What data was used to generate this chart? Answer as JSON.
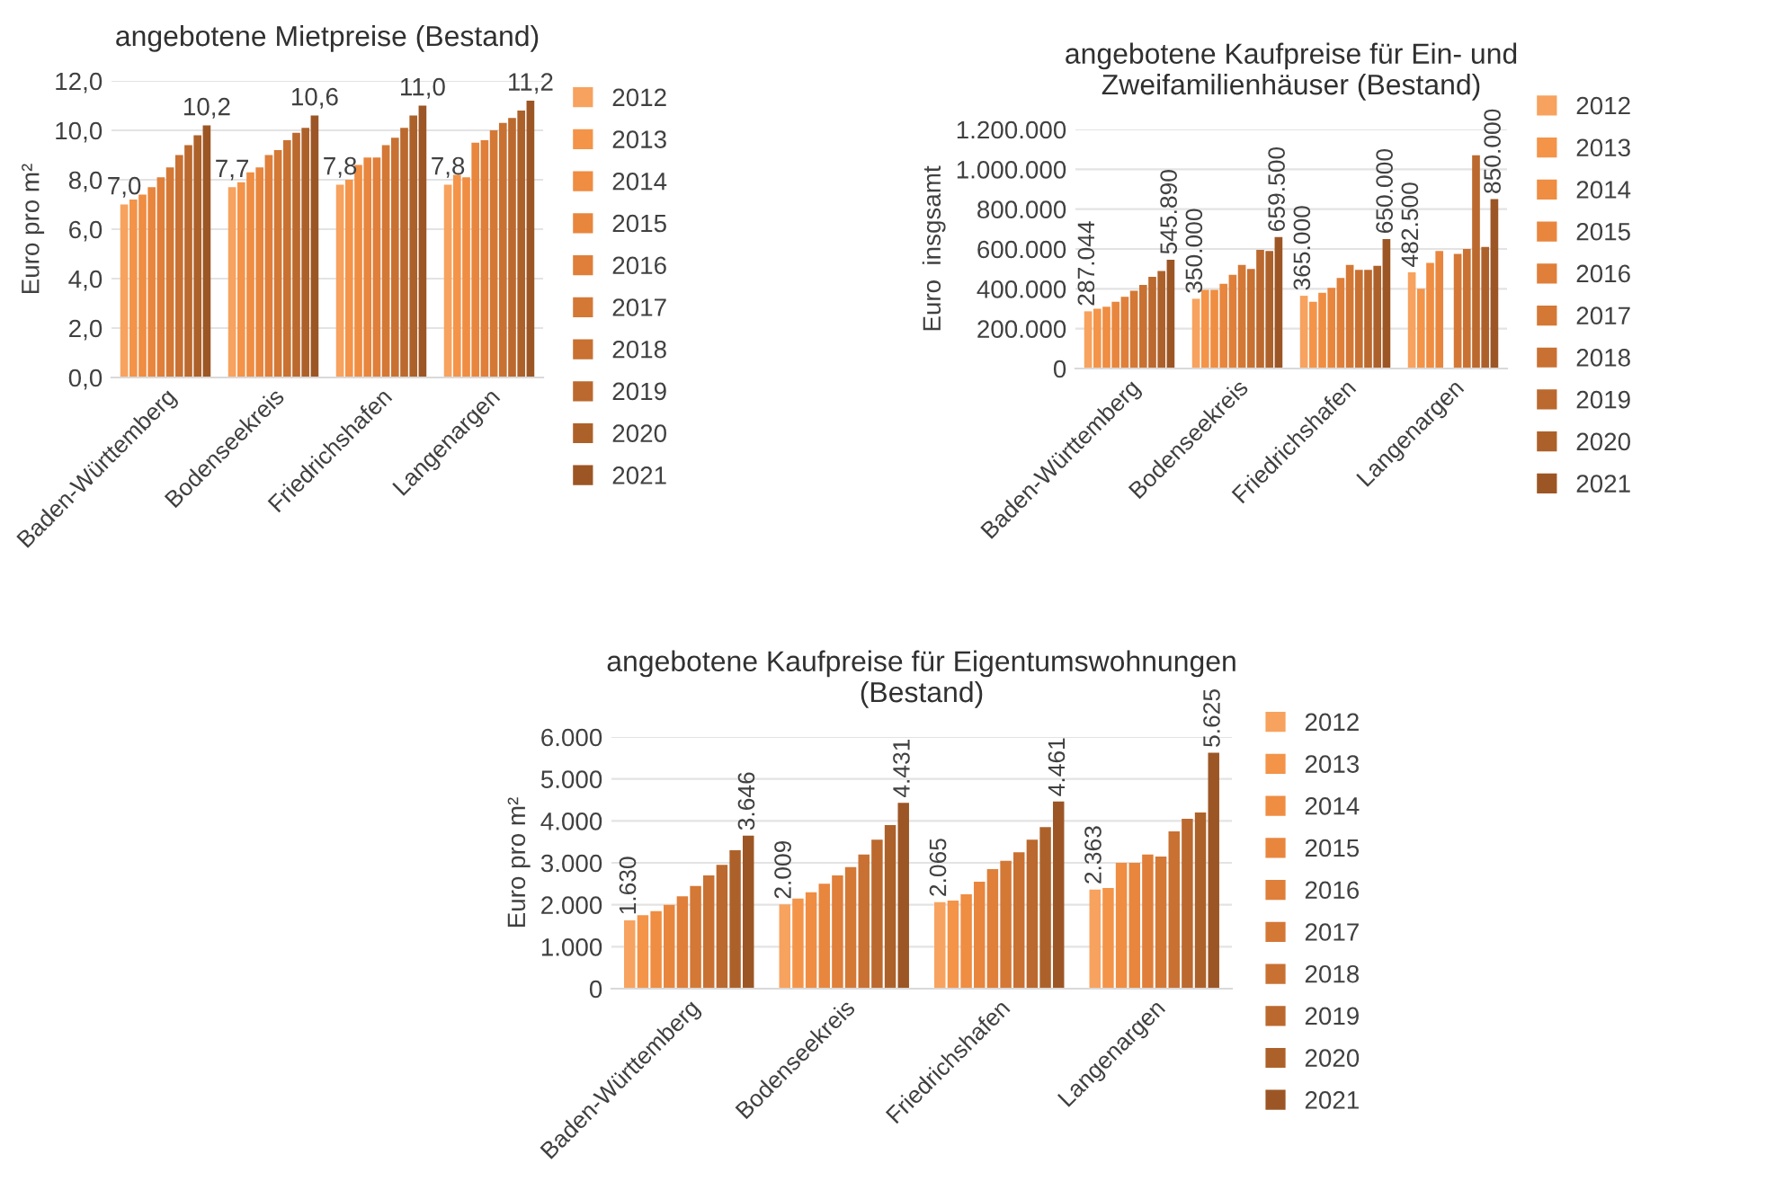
{
  "chart_data": [
    {
      "type": "bar",
      "title": "angebotene Mietpreise (Bestand)",
      "ylabel": "Euro pro m²",
      "categories": [
        "Baden-Württemberg",
        "Bodenseekreis",
        "Friedrichshafen",
        "Langenargen"
      ],
      "ylim": [
        0,
        12
      ],
      "yticks": [
        {
          "value": 0,
          "label": "0,0"
        },
        {
          "value": 2,
          "label": "2,0"
        },
        {
          "value": 4,
          "label": "4,0"
        },
        {
          "value": 6,
          "label": "6,0"
        },
        {
          "value": 8,
          "label": "8,0"
        },
        {
          "value": 10,
          "label": "10,0"
        },
        {
          "value": 12,
          "label": "12,0"
        }
      ],
      "grid": "y",
      "legend": "right",
      "series": [
        {
          "name": "2012",
          "color": "#f7a25e",
          "values": [
            7.0,
            7.7,
            7.8,
            7.8
          ],
          "value_labels": [
            "7,0",
            "7,7",
            "7,8",
            "7,8"
          ]
        },
        {
          "name": "2013",
          "color": "#f39449",
          "values": [
            7.2,
            7.9,
            8.0,
            8.2
          ]
        },
        {
          "name": "2014",
          "color": "#ef8d42",
          "values": [
            7.4,
            8.3,
            8.6,
            8.1
          ]
        },
        {
          "name": "2015",
          "color": "#e8863e",
          "values": [
            7.7,
            8.5,
            8.9,
            9.5
          ]
        },
        {
          "name": "2016",
          "color": "#df7f3a",
          "values": [
            8.1,
            9.0,
            8.9,
            9.6
          ]
        },
        {
          "name": "2017",
          "color": "#d47836",
          "values": [
            8.5,
            9.2,
            9.4,
            10.0
          ]
        },
        {
          "name": "2018",
          "color": "#c97132",
          "values": [
            9.0,
            9.6,
            9.7,
            10.3
          ]
        },
        {
          "name": "2019",
          "color": "#bb692e",
          "values": [
            9.4,
            9.9,
            10.1,
            10.5
          ]
        },
        {
          "name": "2020",
          "color": "#ad612a",
          "values": [
            9.8,
            10.1,
            10.6,
            10.8
          ]
        },
        {
          "name": "2021",
          "color": "#9c5625",
          "values": [
            10.2,
            10.6,
            11.0,
            11.2
          ],
          "value_labels": [
            "10,2",
            "10,6",
            "11,0",
            "11,2"
          ]
        }
      ]
    },
    {
      "type": "bar",
      "title": "angebotene Kaufpreise für Ein- und\nZweifamilienhäuser (Bestand)",
      "ylabel": "Euro  insgsamt",
      "categories": [
        "Baden-Württemberg",
        "Bodenseekreis",
        "Friedrichshafen",
        "Langenargen"
      ],
      "ylim": [
        0,
        1200000
      ],
      "yticks": [
        {
          "value": 0,
          "label": "0"
        },
        {
          "value": 200000,
          "label": "200.000"
        },
        {
          "value": 400000,
          "label": "400.000"
        },
        {
          "value": 600000,
          "label": "600.000"
        },
        {
          "value": 800000,
          "label": "800.000"
        },
        {
          "value": 1000000,
          "label": "1.000.000"
        },
        {
          "value": 1200000,
          "label": "1.200.000"
        }
      ],
      "grid": "y",
      "legend": "right",
      "series": [
        {
          "name": "2012",
          "color": "#f7a25e",
          "values": [
            287044,
            350000,
            365000,
            482500
          ],
          "value_labels": [
            "287.044",
            "350.000",
            "365.000",
            "482.500"
          ]
        },
        {
          "name": "2013",
          "color": "#f39449",
          "values": [
            300000,
            395000,
            335000,
            400000
          ]
        },
        {
          "name": "2014",
          "color": "#ef8d42",
          "values": [
            310000,
            395000,
            380000,
            530000
          ]
        },
        {
          "name": "2015",
          "color": "#e8863e",
          "values": [
            335000,
            425000,
            405000,
            590000
          ]
        },
        {
          "name": "2016",
          "color": "#df7f3a",
          "values": [
            360000,
            470000,
            455000,
            null
          ]
        },
        {
          "name": "2017",
          "color": "#d47836",
          "values": [
            390000,
            520000,
            520000,
            575000
          ]
        },
        {
          "name": "2018",
          "color": "#c97132",
          "values": [
            420000,
            500000,
            495000,
            600000
          ]
        },
        {
          "name": "2019",
          "color": "#bb692e",
          "values": [
            460000,
            595000,
            495000,
            1070000
          ]
        },
        {
          "name": "2020",
          "color": "#ad612a",
          "values": [
            490000,
            590000,
            515000,
            610000
          ]
        },
        {
          "name": "2021",
          "color": "#9c5625",
          "values": [
            545890,
            659500,
            650000,
            850000
          ],
          "value_labels": [
            "545.890",
            "659.500",
            "650.000",
            "850.000"
          ]
        }
      ]
    },
    {
      "type": "bar",
      "title": "angebotene Kaufpreise für Eigentumswohnungen\n(Bestand)",
      "ylabel": "Euro pro m²",
      "categories": [
        "Baden-Württemberg",
        "Bodenseekreis",
        "Friedrichshafen",
        "Langenargen"
      ],
      "ylim": [
        0,
        6000
      ],
      "yticks": [
        {
          "value": 0,
          "label": "0"
        },
        {
          "value": 1000,
          "label": "1.000"
        },
        {
          "value": 2000,
          "label": "2.000"
        },
        {
          "value": 3000,
          "label": "3.000"
        },
        {
          "value": 4000,
          "label": "4.000"
        },
        {
          "value": 5000,
          "label": "5.000"
        },
        {
          "value": 6000,
          "label": "6.000"
        }
      ],
      "grid": "y",
      "legend": "right",
      "series": [
        {
          "name": "2012",
          "color": "#f7a25e",
          "values": [
            1630,
            2009,
            2065,
            2363
          ],
          "value_labels": [
            "1.630",
            "2.009",
            "2.065",
            "2.363"
          ]
        },
        {
          "name": "2013",
          "color": "#f39449",
          "values": [
            1750,
            2150,
            2100,
            2400
          ]
        },
        {
          "name": "2014",
          "color": "#ef8d42",
          "values": [
            1850,
            2300,
            2250,
            3000
          ]
        },
        {
          "name": "2015",
          "color": "#e8863e",
          "values": [
            2000,
            2500,
            2550,
            3000
          ]
        },
        {
          "name": "2016",
          "color": "#df7f3a",
          "values": [
            2200,
            2700,
            2850,
            3200
          ]
        },
        {
          "name": "2017",
          "color": "#d47836",
          "values": [
            2450,
            2900,
            3050,
            3150
          ]
        },
        {
          "name": "2018",
          "color": "#c97132",
          "values": [
            2700,
            3200,
            3250,
            3750
          ]
        },
        {
          "name": "2019",
          "color": "#bb692e",
          "values": [
            2950,
            3550,
            3550,
            4050
          ]
        },
        {
          "name": "2020",
          "color": "#ad612a",
          "values": [
            3300,
            3900,
            3850,
            4200
          ]
        },
        {
          "name": "2021",
          "color": "#9c5625",
          "values": [
            3646,
            4431,
            4461,
            5625
          ],
          "value_labels": [
            "3.646",
            "4.431",
            "4.461",
            "5.625"
          ]
        }
      ]
    }
  ]
}
